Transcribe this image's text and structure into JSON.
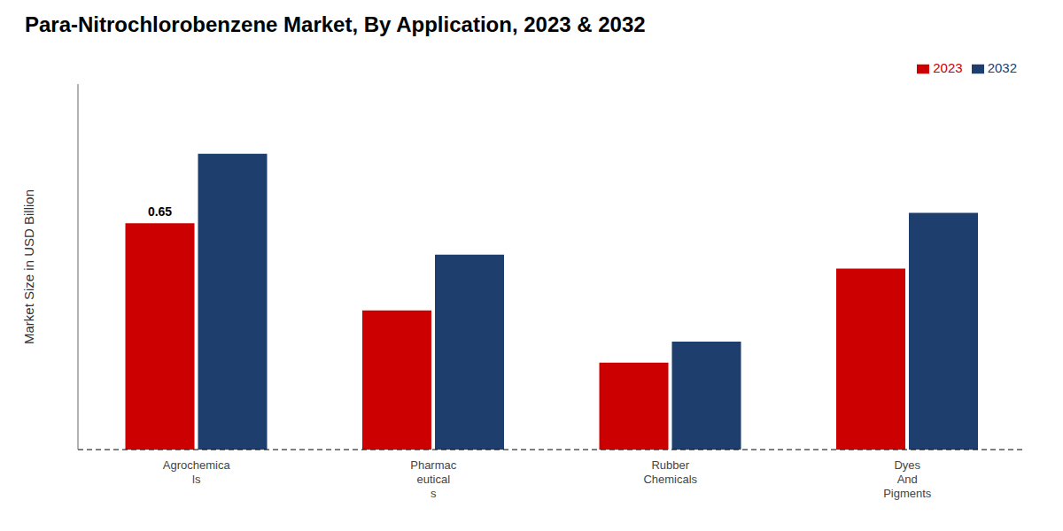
{
  "chart_data": {
    "type": "bar",
    "title": "Para-Nitrochlorobenzene Market, By Application, 2023 & 2032",
    "ylabel": "Market Size in USD Billion",
    "categories": [
      "Agrochemica\nls",
      "Pharmac\neutical\ns",
      "Rubber\nChemicals",
      "Dyes\nAnd\nPigments"
    ],
    "series": [
      {
        "name": "2023",
        "color": "#cc0000",
        "values": [
          0.65,
          0.4,
          0.25,
          0.52
        ]
      },
      {
        "name": "2032",
        "color": "#1e3f6e",
        "values": [
          0.85,
          0.56,
          0.31,
          0.68
        ]
      }
    ],
    "ylim": [
      0,
      1.05
    ],
    "yticks": [],
    "grid": false,
    "legend": "upper right",
    "tick_labels": "x",
    "annotations": [
      {
        "text": "0.65",
        "category": "Agrochemica\nls",
        "series": "2023"
      }
    ]
  }
}
